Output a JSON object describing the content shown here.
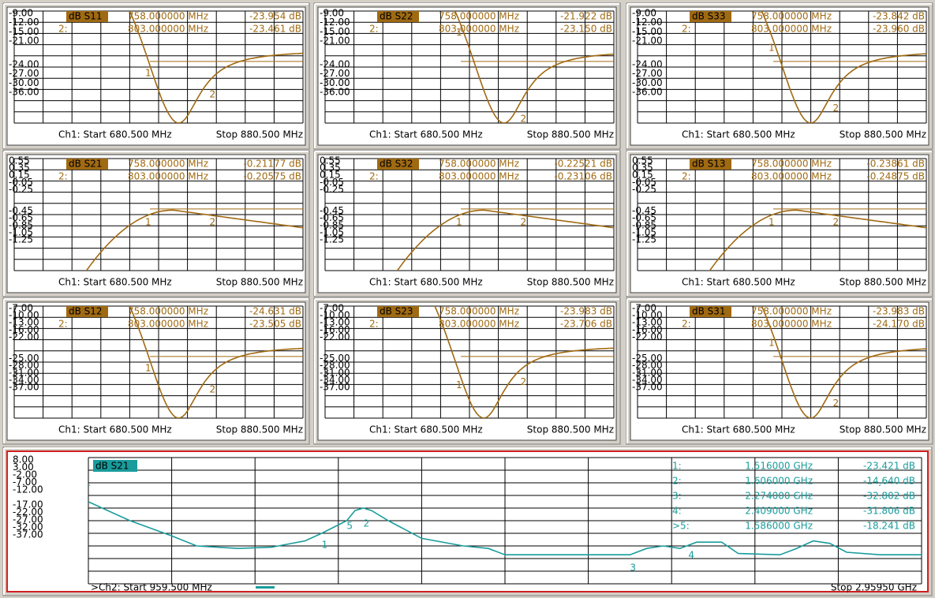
{
  "panels": [
    {
      "trace": "dB S11",
      "yticks": [
        "-9.00",
        "-12.00",
        "-15.00",
        "-21.00",
        "-24.00",
        "-27.00",
        "-30.00",
        "-36.00"
      ],
      "markers": [
        {
          "tag": "1:",
          "num": "1",
          "freq": "758.000000 MHz",
          "value": "-23.954 dB"
        },
        {
          "tag": "2:",
          "num": "2",
          "freq": "803.000000 MHz",
          "value": "-23.461 dB"
        }
      ],
      "start": "Ch1: Start  680.500 MHz",
      "stop": "Stop  880.500 MHz"
    },
    {
      "trace": "dB S22",
      "yticks": [
        "-9.00",
        "-12.00",
        "-15.00",
        "-21.00",
        "-24.00",
        "-27.00",
        "-30.00",
        "-36.00"
      ],
      "markers": [
        {
          "tag": "1:",
          "num": "1",
          "freq": "758.000000 MHz",
          "value": "-21.922 dB"
        },
        {
          "tag": "2:",
          "num": "2",
          "freq": "803.000000 MHz",
          "value": "-23.150 dB"
        }
      ],
      "start": "Ch1: Start  680.500 MHz",
      "stop": "Stop  880.500 MHz"
    },
    {
      "trace": "dB S33",
      "yticks": [
        "-9.00",
        "-12.00",
        "-15.00",
        "-21.00",
        "-24.00",
        "-27.00",
        "-30.00",
        "-36.00"
      ],
      "markers": [
        {
          "tag": "1:",
          "num": "1",
          "freq": "758.000000 MHz",
          "value": "-23.842 dB"
        },
        {
          "tag": "2:",
          "num": "2",
          "freq": "803.000000 MHz",
          "value": "-23.960 dB"
        }
      ],
      "start": "Ch1: Start  680.500 MHz",
      "stop": "Stop  880.500 MHz"
    },
    {
      "trace": "dB S21",
      "yticks": [
        "0.55",
        "0.35",
        "0.15",
        "-0.05",
        "-0.25",
        "-0.45",
        "-0.65",
        "-0.85",
        "-1.05",
        "-1.25"
      ],
      "markers": [
        {
          "tag": "1:",
          "num": "1",
          "freq": "758.000000 MHz",
          "value": "-0.21177 dB"
        },
        {
          "tag": "2:",
          "num": "2",
          "freq": "803.000000 MHz",
          "value": "-0.20575 dB"
        }
      ],
      "start": "Ch1: Start  680.500 MHz",
      "stop": "Stop  880.500 MHz"
    },
    {
      "trace": "dB S32",
      "yticks": [
        "0.55",
        "0.35",
        "0.15",
        "-0.05",
        "-0.25",
        "-0.45",
        "-0.65",
        "-0.85",
        "-1.05",
        "-1.25"
      ],
      "markers": [
        {
          "tag": "1:",
          "num": "1",
          "freq": "758.000000 MHz",
          "value": "-0.22521 dB"
        },
        {
          "tag": "2:",
          "num": "2",
          "freq": "803.000000 MHz",
          "value": "-0.23106 dB"
        }
      ],
      "start": "Ch1: Start  680.500 MHz",
      "stop": "Stop  880.500 MHz"
    },
    {
      "trace": "dB S13",
      "yticks": [
        "0.55",
        "0.35",
        "0.15",
        "-0.05",
        "-0.25",
        "-0.45",
        "-0.65",
        "-0.85",
        "-1.05",
        "-1.25"
      ],
      "markers": [
        {
          "tag": "1:",
          "num": "1",
          "freq": "758.000000 MHz",
          "value": "-0.23861 dB"
        },
        {
          "tag": "2:",
          "num": "2",
          "freq": "803.000000 MHz",
          "value": "-0.24875 dB"
        }
      ],
      "start": "Ch1: Start  680.500 MHz",
      "stop": "Stop  880.500 MHz"
    },
    {
      "trace": "dB S12",
      "yticks": [
        "-7.00",
        "-10.00",
        "-13.00",
        "-16.00",
        "-22.00",
        "-25.00",
        "-28.00",
        "-31.00",
        "-34.00",
        "-37.00"
      ],
      "markers": [
        {
          "tag": "1:",
          "num": "1",
          "freq": "758.000000 MHz",
          "value": "-24.631 dB"
        },
        {
          "tag": "2:",
          "num": "2",
          "freq": "803.000000 MHz",
          "value": "-23.505 dB"
        }
      ],
      "start": "Ch1: Start  680.500 MHz",
      "stop": "Stop  880.500 MHz"
    },
    {
      "trace": "dB S23",
      "yticks": [
        "-7.00",
        "-10.00",
        "-13.00",
        "-16.00",
        "-22.00",
        "-25.00",
        "-28.00",
        "-31.00",
        "-34.00",
        "-37.00"
      ],
      "markers": [
        {
          "tag": "1:",
          "num": "1",
          "freq": "758.000000 MHz",
          "value": "-23.983 dB"
        },
        {
          "tag": "2:",
          "num": "2",
          "freq": "803.000000 MHz",
          "value": "-23.706 dB"
        }
      ],
      "start": "Ch1: Start  680.500 MHz",
      "stop": "Stop  880.500 MHz"
    },
    {
      "trace": "dB S31",
      "yticks": [
        "-7.00",
        "-10.00",
        "-13.00",
        "-16.00",
        "-22.00",
        "-25.00",
        "-28.00",
        "-31.00",
        "-34.00",
        "-37.00"
      ],
      "markers": [
        {
          "tag": "1:",
          "num": "1",
          "freq": "758.000000 MHz",
          "value": "-23.983 dB"
        },
        {
          "tag": "2:",
          "num": "2",
          "freq": "803.000000 MHz",
          "value": "-24.170 dB"
        }
      ],
      "start": "Ch1: Start  680.500 MHz",
      "stop": "Stop  880.500 MHz"
    }
  ],
  "bottom": {
    "trace": "dB S21",
    "yticks": [
      "8.00",
      "3.00",
      "-2.00",
      "-7.00",
      "-12.00",
      "-17.00",
      "-22.00",
      "-27.00",
      "-32.00",
      "-37.00"
    ],
    "markers": [
      {
        "tag": "1:",
        "num": "1",
        "freq": "1.516000 GHz",
        "value": "-23.421 dB"
      },
      {
        "tag": "2:",
        "num": "2",
        "freq": "1.606000 GHz",
        "value": "-14.640 dB"
      },
      {
        "tag": "3:",
        "num": "3",
        "freq": "2.274000 GHz",
        "value": "-32.802 dB"
      },
      {
        "tag": "4:",
        "num": "4",
        "freq": "2.409000 GHz",
        "value": "-31.806 dB"
      },
      {
        "tag": ">5:",
        "num": "5",
        "freq": "1.586000 GHz",
        "value": "-18.241 dB"
      }
    ],
    "start": ">Ch2: Start  959.500 MHz",
    "stop": "Stop  2.95950 GHz"
  }
}
